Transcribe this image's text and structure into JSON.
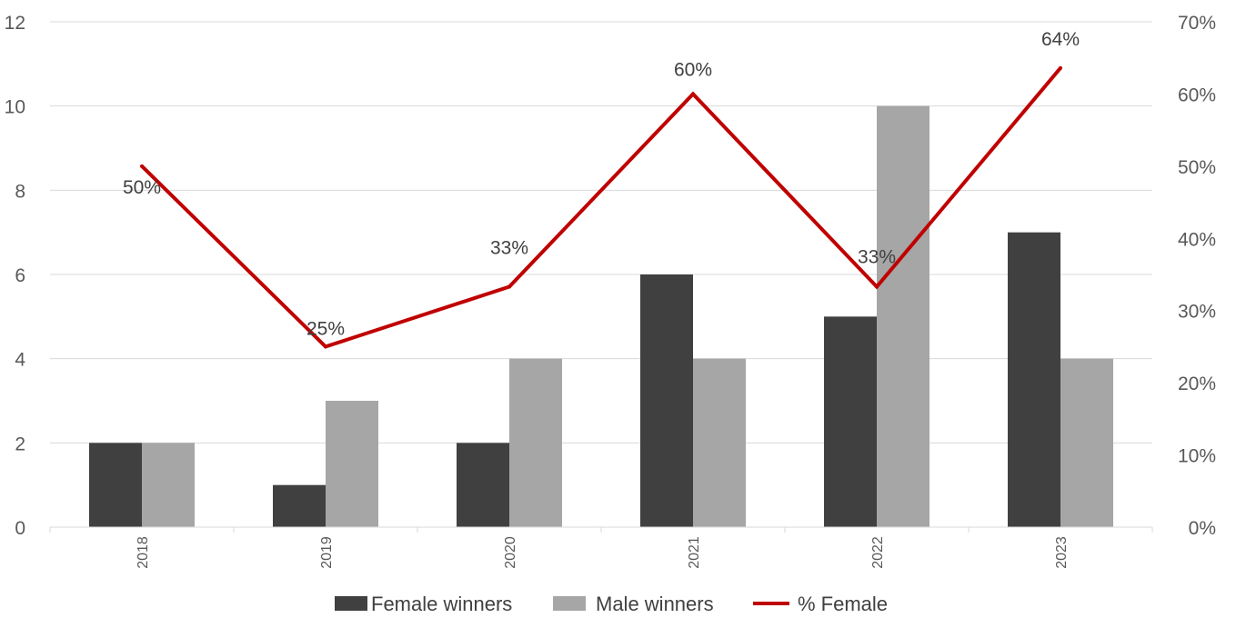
{
  "chart_data": {
    "type": "bar",
    "categories": [
      "2018",
      "2019",
      "2020",
      "2021",
      "2022",
      "2023"
    ],
    "series": [
      {
        "name": "Female winners",
        "kind": "bar",
        "axis": "left",
        "color": "#404040",
        "values": [
          2,
          1,
          2,
          6,
          5,
          7
        ]
      },
      {
        "name": "Male winners",
        "kind": "bar",
        "axis": "left",
        "color": "#a6a6a6",
        "values": [
          2,
          3,
          4,
          4,
          10,
          4
        ]
      },
      {
        "name": "% Female",
        "kind": "line",
        "axis": "right",
        "color": "#c00000",
        "values": [
          0.5,
          0.25,
          0.333,
          0.6,
          0.333,
          0.636
        ],
        "labels": [
          "50%",
          "25%",
          "33%",
          "60%",
          "33%",
          "64%"
        ]
      }
    ],
    "ylim": [
      0,
      12
    ],
    "yticks": [
      "0",
      "2",
      "4",
      "6",
      "8",
      "10",
      "12"
    ],
    "y2lim": [
      0,
      0.7
    ],
    "y2ticks": [
      "0%",
      "10%",
      "20%",
      "30%",
      "40%",
      "50%",
      "60%",
      "70%"
    ],
    "grid": true,
    "legend": "bottom",
    "xlabel": "",
    "ylabel": ""
  }
}
